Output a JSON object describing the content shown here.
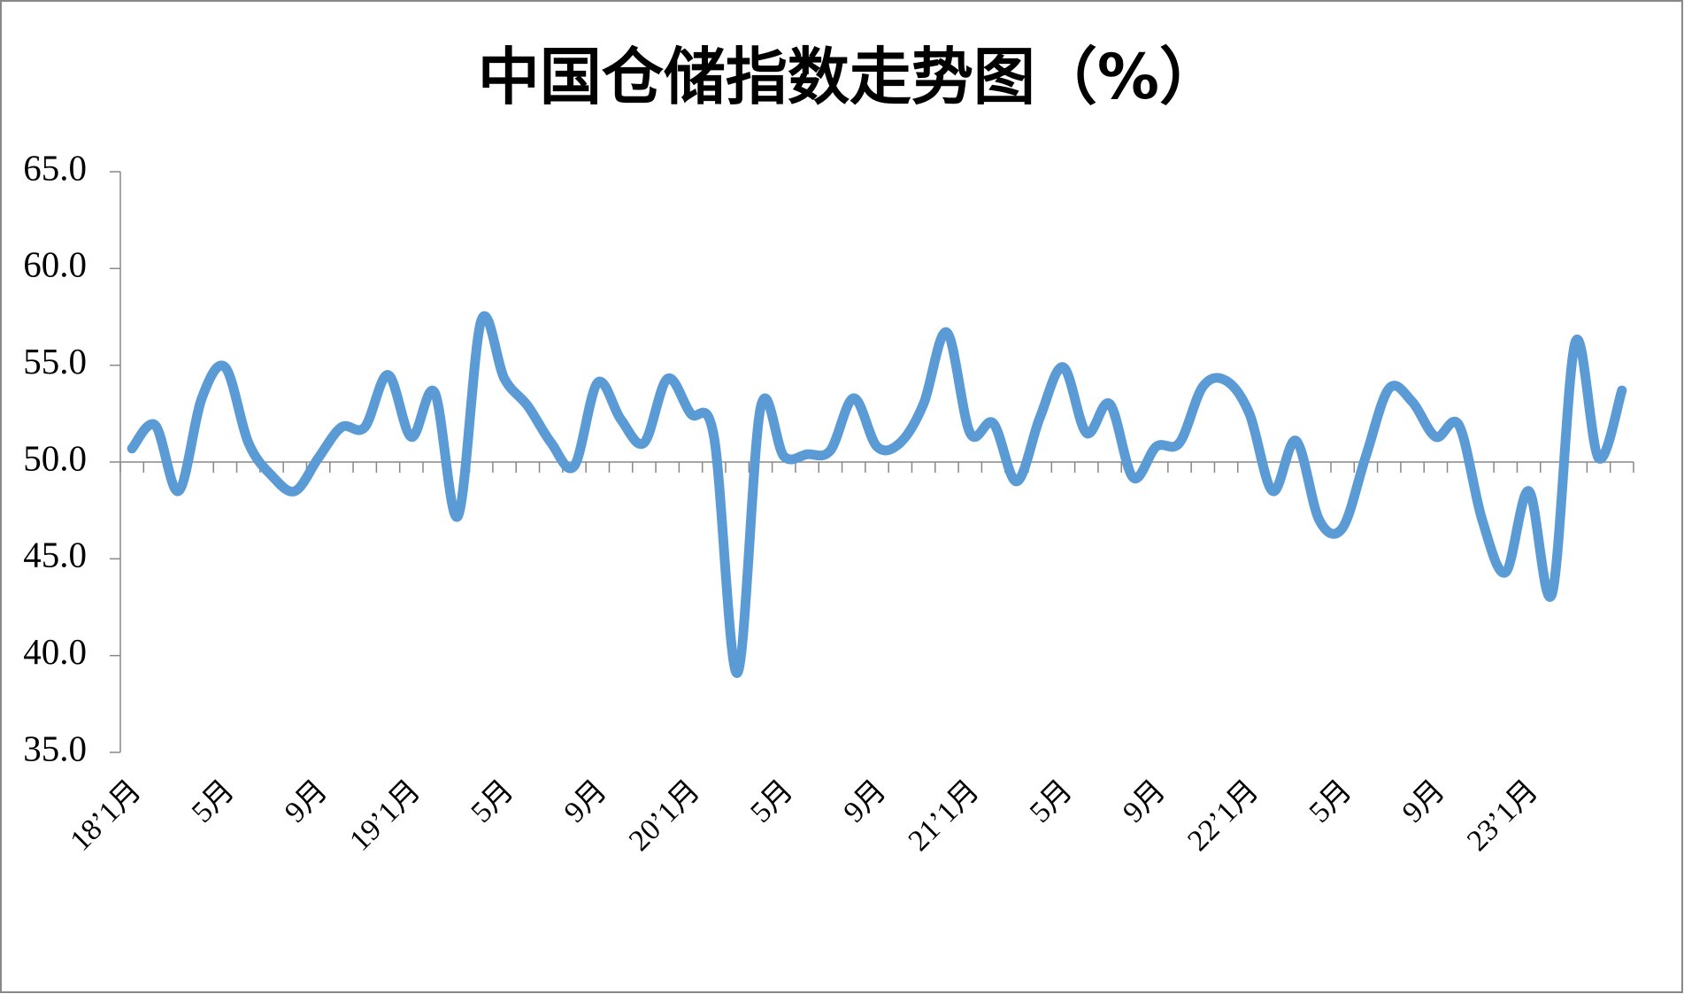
{
  "chart_data": {
    "type": "line",
    "title": "中国仓储指数走势图（%）",
    "categories": [
      "18’1月",
      null,
      null,
      null,
      "5月",
      null,
      null,
      null,
      "9月",
      null,
      null,
      null,
      "19’1月",
      null,
      null,
      null,
      "5月",
      null,
      null,
      null,
      "9月",
      null,
      null,
      null,
      "20’1月",
      null,
      null,
      null,
      "5月",
      null,
      null,
      null,
      "9月",
      null,
      null,
      null,
      "21’1月",
      null,
      null,
      null,
      "5月",
      null,
      null,
      null,
      "9月",
      null,
      null,
      null,
      "22’1月",
      null,
      null,
      null,
      "5月",
      null,
      null,
      null,
      "9月",
      null,
      null,
      null,
      "23’1月",
      null,
      null,
      null,
      null
    ],
    "series": [
      {
        "name": "中国仓储指数",
        "color": "#5b9bd5",
        "values": [
          50.7,
          51.9,
          48.5,
          53.3,
          54.9,
          51.0,
          49.3,
          48.5,
          50.2,
          51.8,
          51.8,
          54.5,
          51.3,
          53.6,
          47.2,
          57.3,
          54.3,
          52.9,
          51.0,
          49.8,
          54.1,
          52.2,
          51.0,
          54.3,
          52.5,
          51.3,
          39.1,
          52.8,
          50.3,
          50.4,
          50.6,
          53.3,
          50.8,
          51.0,
          53.0,
          56.7,
          51.5,
          52.0,
          49.0,
          52.3,
          54.9,
          51.5,
          53.0,
          49.2,
          50.8,
          51.0,
          53.9,
          54.2,
          52.5,
          48.5,
          51.1,
          47.0,
          46.6,
          50.3,
          53.8,
          53.1,
          51.3,
          51.9,
          47.0,
          44.3,
          48.5,
          43.2,
          56.2,
          50.2,
          53.7
        ]
      }
    ],
    "ylim": [
      35,
      65
    ],
    "yticks": [
      {
        "value": 35,
        "label": "35.0"
      },
      {
        "value": 40,
        "label": "40.0"
      },
      {
        "value": 45,
        "label": "45.0"
      },
      {
        "value": 50,
        "label": "50.0"
      },
      {
        "value": 55,
        "label": "55.0"
      },
      {
        "value": 60,
        "label": "60.0"
      },
      {
        "value": 65,
        "label": "65.0"
      }
    ],
    "x_axis_crosses": 50,
    "grid": false
  }
}
